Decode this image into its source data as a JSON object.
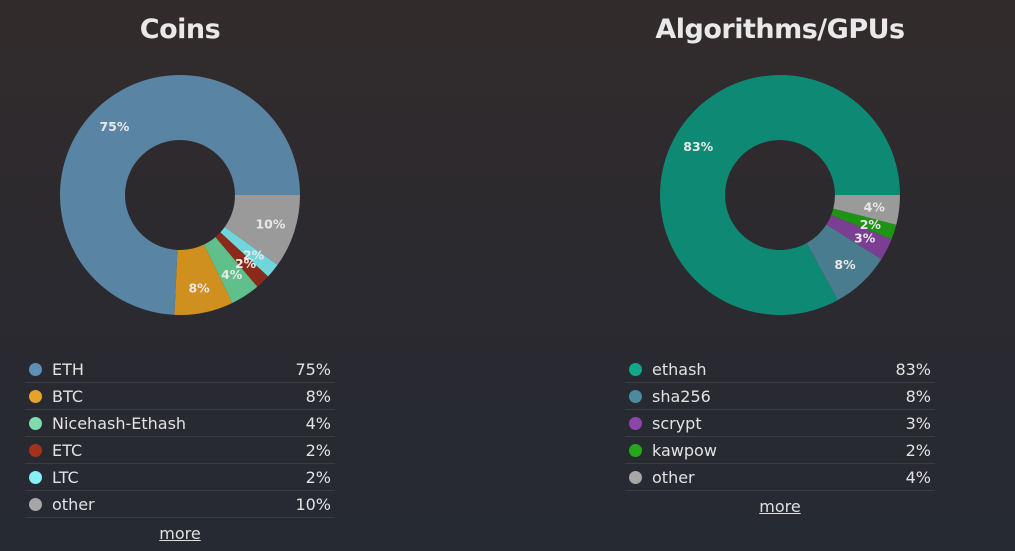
{
  "chart_data": [
    {
      "type": "pie",
      "title": "Coins",
      "categories": [
        "ETH",
        "BTC",
        "Nicehash-Ethash",
        "ETC",
        "LTC",
        "other"
      ],
      "values": [
        75,
        8,
        4,
        2,
        2,
        10
      ],
      "labels": [
        "75%",
        "8%",
        "4%",
        "2%",
        "2%",
        "10%"
      ],
      "colors": [
        "#5a84a3",
        "#cf9020",
        "#5fc08b",
        "#8b2a1a",
        "#6fd6dc",
        "#9a9a9a"
      ],
      "legend_colors": [
        "#5e8fb5",
        "#e7a22a",
        "#7fdcad",
        "#a3321b",
        "#86f0f4",
        "#a6a6a6"
      ],
      "legend_placement": "bottom",
      "more_label": "more"
    },
    {
      "type": "pie",
      "title": "Algorithms/GPUs",
      "categories": [
        "ethash",
        "sha256",
        "scrypt",
        "kawpow",
        "other"
      ],
      "values": [
        83,
        8,
        3,
        2,
        4
      ],
      "labels": [
        "83%",
        "8%",
        "3%",
        "2%",
        "4%"
      ],
      "colors": [
        "#0e8a74",
        "#497c8e",
        "#7a3e92",
        "#1f9414",
        "#9a9a9a"
      ],
      "legend_colors": [
        "#10a889",
        "#4d8aa0",
        "#8e45aa",
        "#27a81a",
        "#a6a6a6"
      ],
      "legend_placement": "bottom",
      "more_label": "more"
    }
  ]
}
